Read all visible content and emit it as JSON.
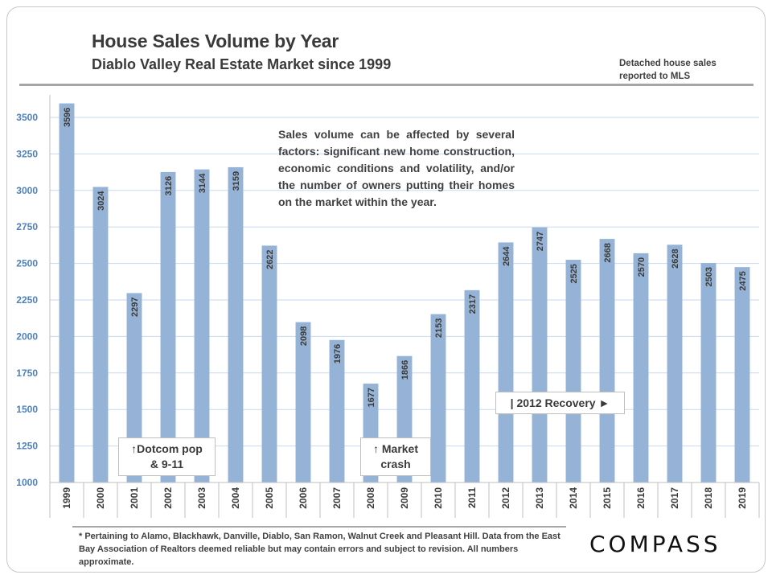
{
  "header": {
    "title": "House Sales Volume by Year",
    "subtitle": "Diablo Valley Real Estate Market since 1999",
    "note_line1": "Detached house sales",
    "note_line2": "reported to MLS"
  },
  "annotations": {
    "description": "Sales volume can be affected by several factors: significant new home construction, economic conditions and volatility, and/or the number of owners putting their homes on the market within the year.",
    "dotcom_line1": "↑Dotcom pop",
    "dotcom_line2": "& 9-11",
    "crash_line1": "↑ Market",
    "crash_line2": "crash",
    "recovery": "| 2012 Recovery ►"
  },
  "footer": {
    "footnote": "* Pertaining to Alamo, Blackhawk, Danville, Diablo, San Ramon, Walnut Creek and Pleasant Hill. Data from the East Bay Association of Realtors deemed reliable but may contain errors and subject to revision. All numbers approximate.",
    "logo": "COMPASS"
  },
  "colors": {
    "bar": "#95b3d7",
    "grid": "#c5d9f1",
    "axis_text": "#4f81bd"
  },
  "chart_data": {
    "type": "bar",
    "title": "House Sales Volume by Year",
    "xlabel": "",
    "ylabel": "",
    "categories": [
      "1999",
      "2000",
      "2001",
      "2002",
      "2003",
      "2004",
      "2005",
      "2006",
      "2007",
      "2008",
      "2009",
      "2010",
      "2011",
      "2012",
      "2013",
      "2014",
      "2015",
      "2016",
      "2017",
      "2018",
      "2019"
    ],
    "values": [
      3596,
      3024,
      2297,
      3126,
      3144,
      3159,
      2622,
      2098,
      1976,
      1677,
      1866,
      2153,
      2317,
      2644,
      2747,
      2525,
      2668,
      2570,
      2628,
      2503,
      2475
    ],
    "ylim": [
      1000,
      3600
    ],
    "yticks": [
      1000,
      1250,
      1500,
      1750,
      2000,
      2250,
      2500,
      2750,
      3000,
      3250,
      3500
    ],
    "grid": true
  }
}
